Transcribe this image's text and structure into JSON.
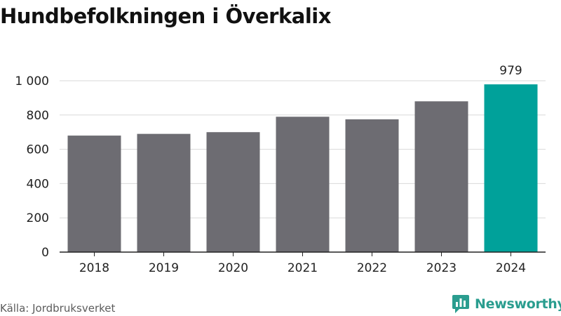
{
  "title": "Hundbefolkningen i Överkalix",
  "source": "Källa: Jordbruksverket",
  "brand": {
    "name": "Newsworthy",
    "icon": "newsworthy-logo-icon"
  },
  "colors": {
    "bar": "#6d6c72",
    "highlight": "#00a19a",
    "grid": "#d9d9d9",
    "axis": "#222222",
    "text": "#222222"
  },
  "chart_data": {
    "type": "bar",
    "categories": [
      "2018",
      "2019",
      "2020",
      "2021",
      "2022",
      "2023",
      "2024"
    ],
    "values": [
      680,
      690,
      700,
      790,
      775,
      880,
      979
    ],
    "highlight_index": 6,
    "data_labels": [
      {
        "index": 6,
        "text": "979"
      }
    ],
    "title": "Hundbefolkningen i Överkalix",
    "xlabel": "",
    "ylabel": "",
    "ylim": [
      0,
      1000
    ],
    "yticks": [
      0,
      200,
      400,
      600,
      800,
      1000
    ],
    "ytick_labels": [
      "0",
      "200",
      "400",
      "600",
      "800",
      "1 000"
    ],
    "grid": true,
    "legend": "none"
  }
}
